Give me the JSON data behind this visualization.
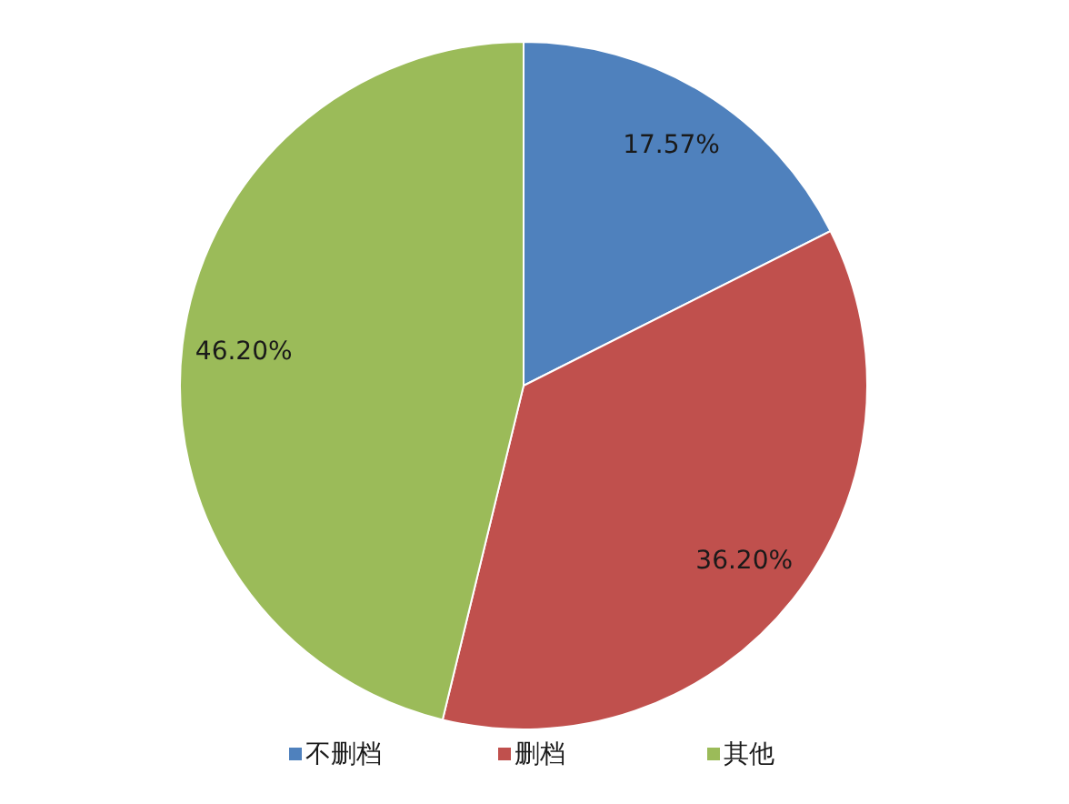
{
  "chart_data": {
    "type": "pie",
    "categories": [
      "不删档",
      "删档",
      "其他"
    ],
    "values": [
      17.57,
      36.2,
      46.2
    ],
    "colors": [
      "#4f81bd",
      "#c0504d",
      "#9bbb59"
    ],
    "value_labels": [
      "17.57%",
      "36.20%",
      "46.20%"
    ],
    "legend": "bottom"
  }
}
